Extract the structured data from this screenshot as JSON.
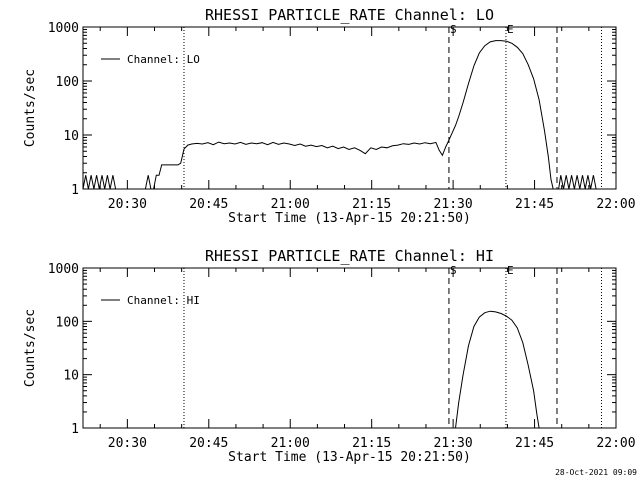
{
  "footer_timestamp": "28-Oct-2021 09:09",
  "chart_data": [
    {
      "type": "line",
      "title": "RHESSI PARTICLE_RATE Channel: LO",
      "xlabel": "Start Time (13-Apr-15 20:21:50)",
      "ylabel": "Counts/sec",
      "x_unit": "minutes after 20:21:50",
      "xlim": [
        0,
        98.17
      ],
      "ylim": [
        1,
        1000
      ],
      "y_scale": "log",
      "x_ticks": [
        {
          "label": "20:30",
          "value": 8.17
        },
        {
          "label": "20:45",
          "value": 23.17
        },
        {
          "label": "21:00",
          "value": 38.17
        },
        {
          "label": "21:15",
          "value": 53.17
        },
        {
          "label": "21:30",
          "value": 68.17
        },
        {
          "label": "21:45",
          "value": 83.17
        },
        {
          "label": "22:00",
          "value": 98.17
        }
      ],
      "y_ticks": [
        {
          "label": "1",
          "value": 1
        },
        {
          "label": "10",
          "value": 10
        },
        {
          "label": "100",
          "value": 100
        },
        {
          "label": "1000",
          "value": 1000
        }
      ],
      "legend": {
        "label": "Channel: LO",
        "position": "top-left"
      },
      "markers": [
        {
          "x": 18.6,
          "style": "dotted",
          "label": ""
        },
        {
          "x": 67.4,
          "style": "dashed",
          "label": "S"
        },
        {
          "x": 77.9,
          "style": "dotted",
          "label": "E"
        },
        {
          "x": 87.3,
          "style": "dashed",
          "label": ""
        },
        {
          "x": 95.5,
          "style": "dotted",
          "label": ""
        }
      ],
      "series": [
        {
          "name": "Channel: LO",
          "points": [
            [
              0,
              1
            ],
            [
              0.5,
              1.8
            ],
            [
              1,
              1
            ],
            [
              1.5,
              1.8
            ],
            [
              2,
              1
            ],
            [
              2.5,
              1.8
            ],
            [
              3,
              1
            ],
            [
              3.5,
              1.8
            ],
            [
              4,
              1
            ],
            [
              4.5,
              1.8
            ],
            [
              5,
              1
            ],
            [
              5.5,
              1.8
            ],
            [
              6,
              1
            ],
            [
              11.5,
              1
            ],
            [
              12,
              1.8
            ],
            [
              12.5,
              1
            ],
            [
              13,
              1
            ],
            [
              13.5,
              1.8
            ],
            [
              14,
              1.8
            ],
            [
              14.5,
              2.8
            ],
            [
              15,
              2.8
            ],
            [
              15.5,
              2.8
            ],
            [
              16,
              2.8
            ],
            [
              16.5,
              2.8
            ],
            [
              17,
              2.8
            ],
            [
              17.5,
              2.8
            ],
            [
              18,
              3
            ],
            [
              18.6,
              5.5
            ],
            [
              19.3,
              6.5
            ],
            [
              20,
              6.8
            ],
            [
              21,
              7
            ],
            [
              22,
              6.8
            ],
            [
              23,
              7.2
            ],
            [
              24,
              6.6
            ],
            [
              25,
              7.4
            ],
            [
              26,
              6.9
            ],
            [
              27,
              7.1
            ],
            [
              28,
              6.8
            ],
            [
              29,
              7.3
            ],
            [
              30,
              6.7
            ],
            [
              31,
              7.1
            ],
            [
              32,
              6.9
            ],
            [
              33,
              7.2
            ],
            [
              34,
              6.6
            ],
            [
              35,
              7.3
            ],
            [
              36,
              6.7
            ],
            [
              37,
              7.1
            ],
            [
              38,
              6.8
            ],
            [
              39,
              6.4
            ],
            [
              40,
              6.8
            ],
            [
              41,
              6.2
            ],
            [
              42,
              6.5
            ],
            [
              43,
              6.1
            ],
            [
              44,
              6.4
            ],
            [
              45,
              5.8
            ],
            [
              46,
              6.2
            ],
            [
              47,
              5.6
            ],
            [
              48,
              6
            ],
            [
              49,
              5.4
            ],
            [
              50,
              5.8
            ],
            [
              51,
              5.2
            ],
            [
              52,
              4.5
            ],
            [
              53,
              5.8
            ],
            [
              54,
              5.4
            ],
            [
              55,
              6
            ],
            [
              56,
              5.8
            ],
            [
              57,
              6.3
            ],
            [
              58,
              6.5
            ],
            [
              59,
              6.9
            ],
            [
              60,
              6.7
            ],
            [
              61,
              7.1
            ],
            [
              62,
              6.8
            ],
            [
              63,
              7.2
            ],
            [
              64,
              6.9
            ],
            [
              65,
              7.3
            ],
            [
              65.6,
              5.2
            ],
            [
              66.2,
              4.2
            ],
            [
              66.8,
              6
            ],
            [
              67.4,
              8
            ],
            [
              68,
              11
            ],
            [
              68.6,
              15
            ],
            [
              69.2,
              22
            ],
            [
              70,
              40
            ],
            [
              71,
              90
            ],
            [
              72,
              190
            ],
            [
              73,
              330
            ],
            [
              74,
              450
            ],
            [
              75,
              530
            ],
            [
              76,
              560
            ],
            [
              77,
              560
            ],
            [
              78,
              545
            ],
            [
              79,
              500
            ],
            [
              80,
              420
            ],
            [
              81,
              320
            ],
            [
              82,
              200
            ],
            [
              83,
              110
            ],
            [
              84,
              45
            ],
            [
              85,
              12
            ],
            [
              85.7,
              4
            ],
            [
              86.2,
              1.5
            ],
            [
              86.6,
              1
            ],
            [
              87.6,
              1
            ],
            [
              88,
              1.8
            ],
            [
              88.5,
              1
            ],
            [
              89,
              1.8
            ],
            [
              89.5,
              1
            ],
            [
              90,
              1.8
            ],
            [
              90.5,
              1
            ],
            [
              91,
              1.8
            ],
            [
              91.5,
              1
            ],
            [
              92,
              1.8
            ],
            [
              92.5,
              1
            ],
            [
              93,
              1.8
            ],
            [
              93.5,
              1
            ],
            [
              94,
              1.8
            ],
            [
              94.5,
              1
            ]
          ]
        }
      ]
    },
    {
      "type": "line",
      "title": "RHESSI PARTICLE_RATE Channel: HI",
      "xlabel": "Start Time (13-Apr-15 20:21:50)",
      "ylabel": "Counts/sec",
      "x_unit": "minutes after 20:21:50",
      "xlim": [
        0,
        98.17
      ],
      "ylim": [
        1,
        1000
      ],
      "y_scale": "log",
      "x_ticks": [
        {
          "label": "20:30",
          "value": 8.17
        },
        {
          "label": "20:45",
          "value": 23.17
        },
        {
          "label": "21:00",
          "value": 38.17
        },
        {
          "label": "21:15",
          "value": 53.17
        },
        {
          "label": "21:30",
          "value": 68.17
        },
        {
          "label": "21:45",
          "value": 83.17
        },
        {
          "label": "22:00",
          "value": 98.17
        }
      ],
      "y_ticks": [
        {
          "label": "1",
          "value": 1
        },
        {
          "label": "10",
          "value": 10
        },
        {
          "label": "100",
          "value": 100
        },
        {
          "label": "1000",
          "value": 1000
        }
      ],
      "legend": {
        "label": "Channel: HI",
        "position": "top-left"
      },
      "markers": [
        {
          "x": 18.6,
          "style": "dotted",
          "label": ""
        },
        {
          "x": 67.4,
          "style": "dashed",
          "label": "S"
        },
        {
          "x": 77.9,
          "style": "dotted",
          "label": "E"
        },
        {
          "x": 87.3,
          "style": "dashed",
          "label": ""
        },
        {
          "x": 95.5,
          "style": "dotted",
          "label": ""
        }
      ],
      "series": [
        {
          "name": "Channel: HI",
          "points": [
            [
              68.6,
              1
            ],
            [
              69.2,
              3
            ],
            [
              70,
              10
            ],
            [
              71,
              35
            ],
            [
              72,
              80
            ],
            [
              73,
              120
            ],
            [
              74,
              145
            ],
            [
              75,
              155
            ],
            [
              76,
              150
            ],
            [
              77,
              140
            ],
            [
              78,
              125
            ],
            [
              79,
              105
            ],
            [
              80,
              75
            ],
            [
              81,
              40
            ],
            [
              82,
              15
            ],
            [
              83,
              5
            ],
            [
              83.6,
              1.8
            ],
            [
              84,
              1
            ]
          ]
        }
      ]
    }
  ]
}
